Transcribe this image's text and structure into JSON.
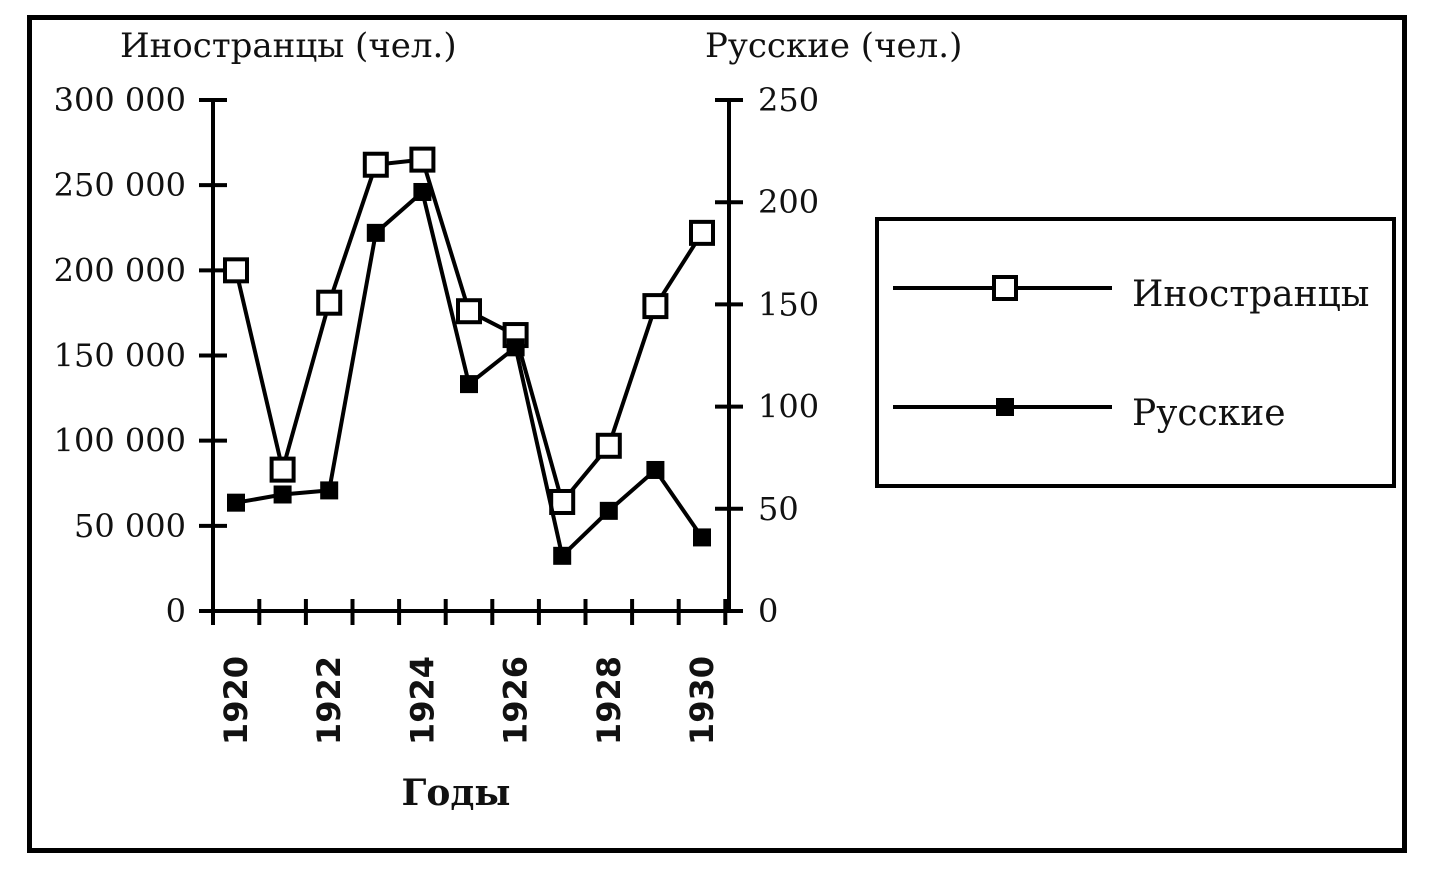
{
  "chart_data": {
    "type": "line",
    "xlabel": "Годы",
    "x": [
      1920,
      1921,
      1922,
      1923,
      1924,
      1925,
      1926,
      1927,
      1928,
      1929,
      1930
    ],
    "x_tick_labels": [
      "1920",
      "1922",
      "1924",
      "1926",
      "1928",
      "1930"
    ],
    "y_left": {
      "label": "Иностранцы (чел.)",
      "range": [
        0,
        300000
      ],
      "ticks": [
        "0",
        "50 000",
        "100 000",
        "150 000",
        "200 000",
        "250 000",
        "300 000"
      ],
      "tick_values": [
        0,
        50000,
        100000,
        150000,
        200000,
        250000,
        300000
      ]
    },
    "y_right": {
      "label": "Русские (чел.)",
      "range": [
        0,
        250
      ],
      "ticks": [
        "0",
        "50",
        "100",
        "150",
        "200",
        "250"
      ],
      "tick_values": [
        0,
        50,
        100,
        150,
        200,
        250
      ]
    },
    "series": [
      {
        "name": "Иностранцы",
        "axis": "left",
        "marker": "open-square",
        "values": [
          200000,
          83000,
          181000,
          262000,
          265000,
          176000,
          162000,
          64000,
          97000,
          179000,
          222000
        ]
      },
      {
        "name": "Русские",
        "axis": "right",
        "marker": "filled-square",
        "values": [
          53,
          57,
          59,
          185,
          205,
          111,
          129,
          27,
          49,
          69,
          36
        ]
      }
    ],
    "legend_position": "right",
    "grid": false
  },
  "colors": {
    "line": "#000000",
    "background": "#ffffff"
  }
}
